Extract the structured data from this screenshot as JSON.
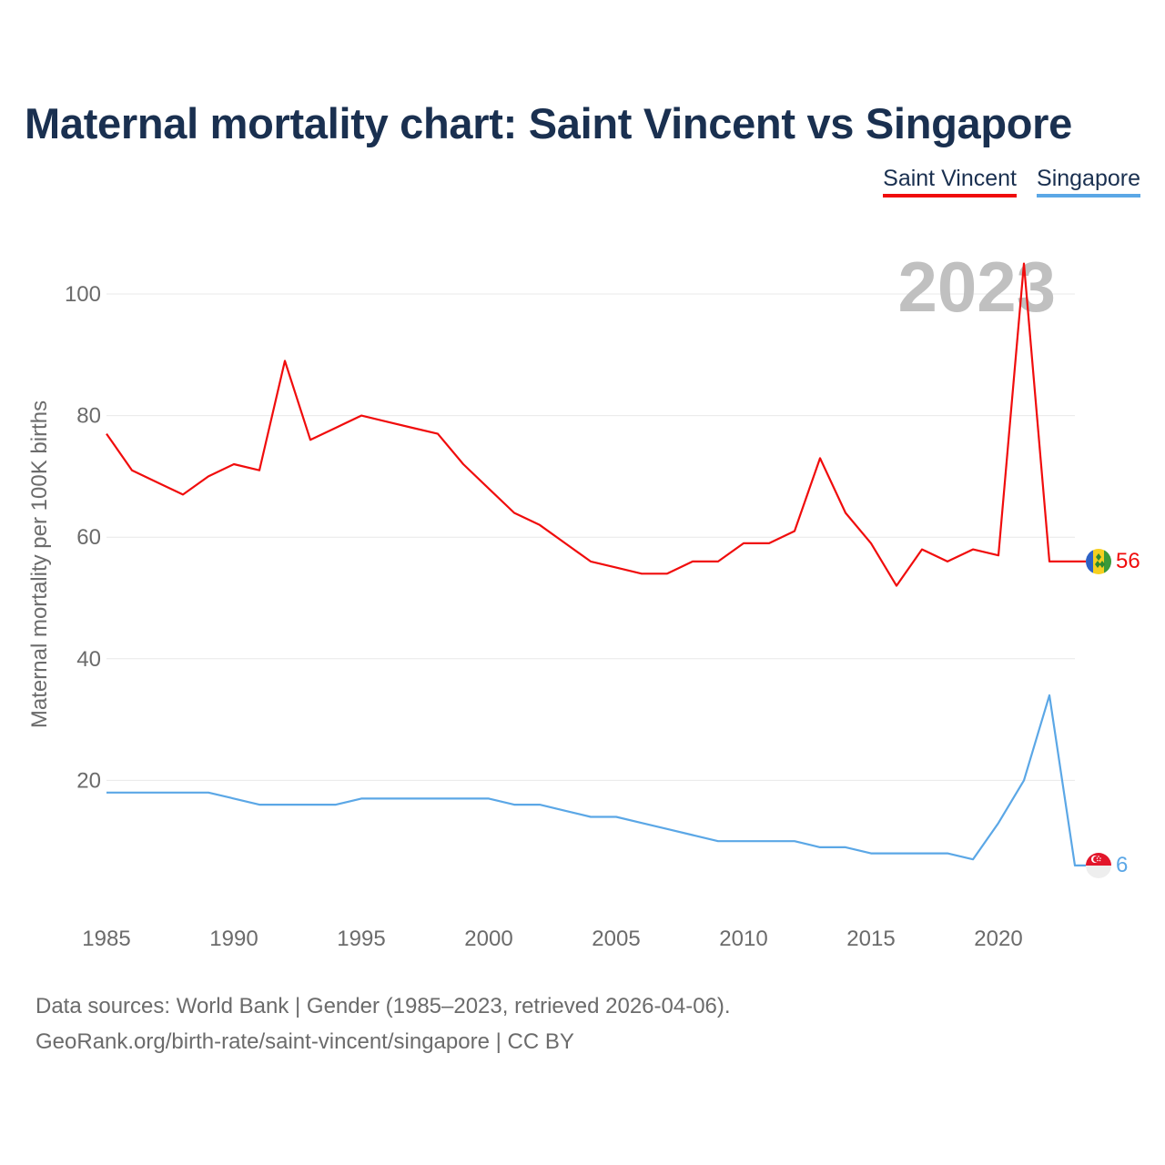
{
  "title": "Maternal mortality chart: Saint Vincent vs Singapore",
  "legend": [
    {
      "name": "Saint Vincent",
      "color": "#f00c0c"
    },
    {
      "name": "Singapore",
      "color": "#5ba7e6"
    }
  ],
  "year_watermark": "2023",
  "footer": {
    "line1": "Data sources: World Bank | Gender (1985–2023, retrieved 2026-04-06).",
    "line2": "GeoRank.org/birth-rate/saint-vincent/singapore | CC BY"
  },
  "chart_data": {
    "type": "line",
    "title": "Maternal mortality chart: Saint Vincent vs Singapore",
    "xlabel": "",
    "ylabel": "Maternal mortality per 100K births",
    "xlim": [
      1985,
      2023
    ],
    "ylim": [
      0,
      105
    ],
    "x_ticks": [
      1985,
      1990,
      1995,
      2000,
      2005,
      2010,
      2015,
      2020
    ],
    "y_ticks": [
      20,
      40,
      60,
      80,
      100
    ],
    "grid": true,
    "legend_position": "top-right",
    "x": [
      1985,
      1986,
      1987,
      1988,
      1989,
      1990,
      1991,
      1992,
      1993,
      1994,
      1995,
      1996,
      1997,
      1998,
      1999,
      2000,
      2001,
      2002,
      2003,
      2004,
      2005,
      2006,
      2007,
      2008,
      2009,
      2010,
      2011,
      2012,
      2013,
      2014,
      2015,
      2016,
      2017,
      2018,
      2019,
      2020,
      2021,
      2022,
      2023
    ],
    "series": [
      {
        "name": "Saint Vincent",
        "color": "#f00c0c",
        "end_label": "56",
        "values": [
          77,
          71,
          69,
          67,
          70,
          72,
          71,
          89,
          76,
          78,
          80,
          79,
          78,
          77,
          72,
          68,
          64,
          62,
          59,
          56,
          55,
          54,
          54,
          56,
          56,
          59,
          59,
          61,
          73,
          64,
          59,
          52,
          58,
          56,
          58,
          57,
          105,
          56,
          56
        ]
      },
      {
        "name": "Singapore",
        "color": "#5ba7e6",
        "end_label": "6",
        "values": [
          18,
          18,
          18,
          18,
          18,
          17,
          16,
          16,
          16,
          16,
          17,
          17,
          17,
          17,
          17,
          17,
          16,
          16,
          15,
          14,
          14,
          13,
          12,
          11,
          10,
          10,
          10,
          10,
          9,
          9,
          8,
          8,
          8,
          8,
          7,
          13,
          20,
          34,
          6
        ]
      }
    ]
  }
}
